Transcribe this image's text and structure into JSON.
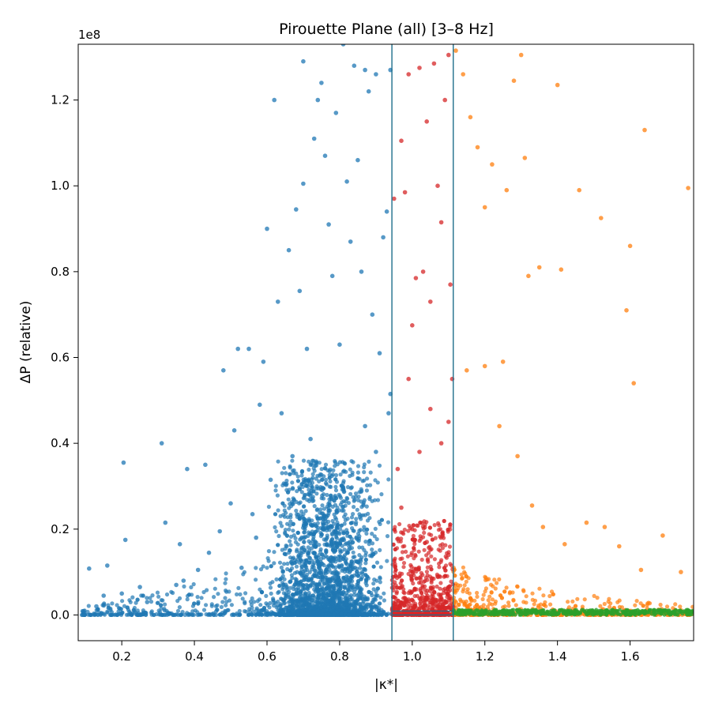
{
  "chart_data": {
    "type": "scatter",
    "title": "Pirouette Plane (all)  [3–8 Hz]",
    "xlabel": "|κ*|",
    "ylabel": "ΔP (relative)",
    "y_multiplier": "1e8",
    "xlim": [
      0.08,
      1.775
    ],
    "ylim": [
      -6000000,
      133000000
    ],
    "x_ticks": [
      0.2,
      0.4,
      0.6,
      0.8,
      1.0,
      1.2,
      1.4,
      1.6
    ],
    "x_tick_labels": [
      "0.2",
      "0.4",
      "0.6",
      "0.8",
      "1.0",
      "1.2",
      "1.4",
      "1.6"
    ],
    "y_ticks": [
      0,
      20000000,
      40000000,
      60000000,
      80000000,
      100000000,
      120000000
    ],
    "y_tick_labels": [
      "0.0",
      "0.2",
      "0.4",
      "0.6",
      "0.8",
      "1.0",
      "1.2"
    ],
    "grid": false,
    "legend": "none",
    "vertical_lines": [
      0.944,
      1.113
    ],
    "line_color": "#1f6e8c",
    "series": [
      {
        "color": "#1f77b4",
        "points": [
          [
            0.095,
            900000
          ],
          [
            0.11,
            10800000
          ],
          [
            0.13,
            2000000
          ],
          [
            0.15,
            4500000
          ],
          [
            0.16,
            11500000
          ],
          [
            0.2,
            5000000
          ],
          [
            0.21,
            17500000
          ],
          [
            0.205,
            35500000
          ],
          [
            0.25,
            6500000
          ],
          [
            0.27,
            3000000
          ],
          [
            0.31,
            40000000
          ],
          [
            0.32,
            21500000
          ],
          [
            0.35,
            7000000
          ],
          [
            0.36,
            16500000
          ],
          [
            0.37,
            8000000
          ],
          [
            0.38,
            34000000
          ],
          [
            0.41,
            10500000
          ],
          [
            0.43,
            35000000
          ],
          [
            0.44,
            14500000
          ],
          [
            0.47,
            19500000
          ],
          [
            0.48,
            57000000
          ],
          [
            0.5,
            26000000
          ],
          [
            0.51,
            43000000
          ],
          [
            0.52,
            62000000
          ],
          [
            0.53,
            11000000
          ],
          [
            0.55,
            62000000
          ],
          [
            0.56,
            23500000
          ],
          [
            0.57,
            18000000
          ],
          [
            0.58,
            49000000
          ],
          [
            0.59,
            59000000
          ],
          [
            0.6,
            90000000
          ],
          [
            0.61,
            31500000
          ],
          [
            0.62,
            120000000
          ],
          [
            0.63,
            73000000
          ],
          [
            0.64,
            47000000
          ],
          [
            0.65,
            30500000
          ],
          [
            0.66,
            85000000
          ],
          [
            0.67,
            37000000
          ],
          [
            0.68,
            94500000
          ],
          [
            0.69,
            75500000
          ],
          [
            0.7,
            129000000
          ],
          [
            0.7,
            100500000
          ],
          [
            0.71,
            62000000
          ],
          [
            0.72,
            41000000
          ],
          [
            0.73,
            111000000
          ],
          [
            0.74,
            120000000
          ],
          [
            0.75,
            124000000
          ],
          [
            0.76,
            107000000
          ],
          [
            0.77,
            91000000
          ],
          [
            0.78,
            79000000
          ],
          [
            0.79,
            117000000
          ],
          [
            0.8,
            63000000
          ],
          [
            0.81,
            133000000
          ],
          [
            0.82,
            101000000
          ],
          [
            0.83,
            87000000
          ],
          [
            0.84,
            128000000
          ],
          [
            0.85,
            106000000
          ],
          [
            0.86,
            80000000
          ],
          [
            0.87,
            127000000
          ],
          [
            0.88,
            122000000
          ],
          [
            0.89,
            70000000
          ],
          [
            0.9,
            126000000
          ],
          [
            0.91,
            61000000
          ],
          [
            0.92,
            88000000
          ],
          [
            0.93,
            94000000
          ],
          [
            0.94,
            51500000
          ],
          [
            0.94,
            127000000
          ],
          [
            0.935,
            47000000
          ],
          [
            0.9,
            38000000
          ],
          [
            0.87,
            44000000
          ]
        ]
      },
      {
        "color": "#d62728",
        "points": [
          [
            0.95,
            97000000
          ],
          [
            0.96,
            34000000
          ],
          [
            0.97,
            110500000
          ],
          [
            0.98,
            98500000
          ],
          [
            0.99,
            126000000
          ],
          [
            1.0,
            67500000
          ],
          [
            1.01,
            78500000
          ],
          [
            1.02,
            127500000
          ],
          [
            1.03,
            80000000
          ],
          [
            1.04,
            115000000
          ],
          [
            1.05,
            73000000
          ],
          [
            1.06,
            128500000
          ],
          [
            1.07,
            100000000
          ],
          [
            1.08,
            91500000
          ],
          [
            1.09,
            120000000
          ],
          [
            1.1,
            130500000
          ],
          [
            1.105,
            77000000
          ],
          [
            1.11,
            55000000
          ],
          [
            1.1,
            45000000
          ],
          [
            1.08,
            40000000
          ],
          [
            1.05,
            48000000
          ],
          [
            1.02,
            38000000
          ],
          [
            0.99,
            55000000
          ],
          [
            0.97,
            25000000
          ],
          [
            1.0,
            20000000
          ],
          [
            1.04,
            17000000
          ],
          [
            1.07,
            9000000
          ],
          [
            1.1,
            14000000
          ]
        ]
      },
      {
        "color": "#ff7f0e",
        "points": [
          [
            1.12,
            131500000
          ],
          [
            1.14,
            126000000
          ],
          [
            1.16,
            116000000
          ],
          [
            1.18,
            109000000
          ],
          [
            1.2,
            95000000
          ],
          [
            1.22,
            105000000
          ],
          [
            1.26,
            99000000
          ],
          [
            1.28,
            124500000
          ],
          [
            1.3,
            130500000
          ],
          [
            1.31,
            106500000
          ],
          [
            1.32,
            79000000
          ],
          [
            1.35,
            81000000
          ],
          [
            1.4,
            123500000
          ],
          [
            1.41,
            80500000
          ],
          [
            1.46,
            99000000
          ],
          [
            1.52,
            92500000
          ],
          [
            1.59,
            71000000
          ],
          [
            1.6,
            86000000
          ],
          [
            1.61,
            54000000
          ],
          [
            1.64,
            113000000
          ],
          [
            1.76,
            99500000
          ],
          [
            1.15,
            57000000
          ],
          [
            1.2,
            58000000
          ],
          [
            1.24,
            44000000
          ],
          [
            1.25,
            59000000
          ],
          [
            1.29,
            37000000
          ],
          [
            1.33,
            25500000
          ],
          [
            1.36,
            20500000
          ],
          [
            1.42,
            16500000
          ],
          [
            1.48,
            21500000
          ],
          [
            1.53,
            20500000
          ],
          [
            1.57,
            16000000
          ],
          [
            1.63,
            10500000
          ],
          [
            1.69,
            18500000
          ],
          [
            1.74,
            10000000
          ]
        ]
      },
      {
        "color": "#2ca02c",
        "points": [
          [
            1.13,
            200000
          ],
          [
            1.2,
            300000
          ],
          [
            1.3,
            100000
          ],
          [
            1.4,
            200000
          ],
          [
            1.5,
            300000
          ],
          [
            1.6,
            100000
          ],
          [
            1.7,
            400000
          ],
          [
            1.77,
            200000
          ]
        ]
      }
    ]
  }
}
